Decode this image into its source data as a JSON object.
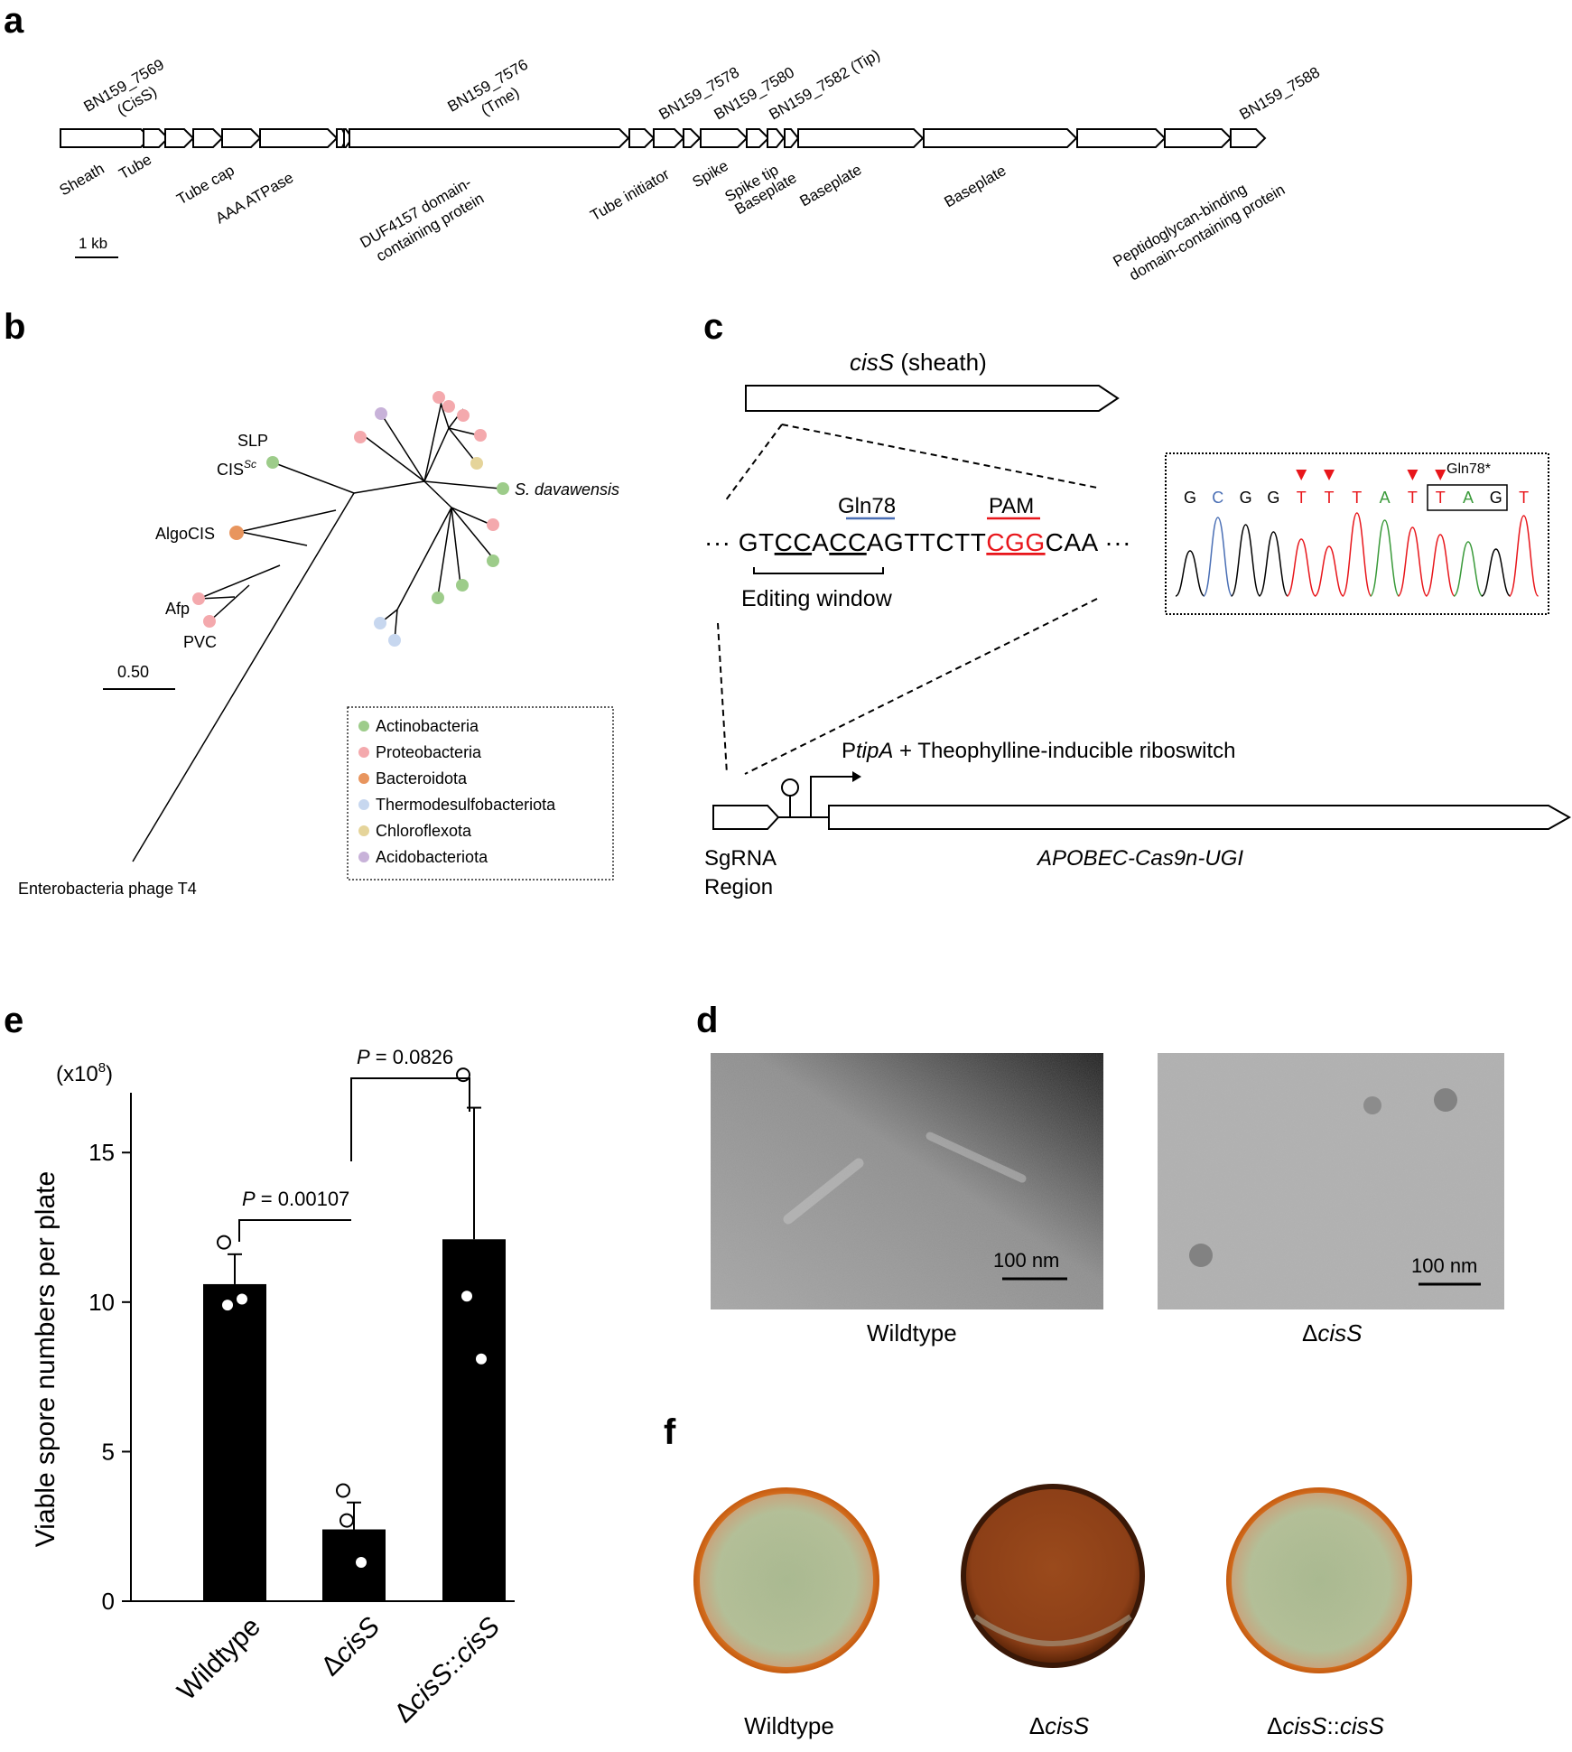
{
  "panels": {
    "a": "a",
    "b": "b",
    "c": "c",
    "d": "d",
    "e": "e",
    "f": "f"
  },
  "panel_a": {
    "top_labels": [
      {
        "text": "BN159_7569",
        "sub": "(CisS)"
      },
      {
        "text": "BN159_7576",
        "sub": "(Tme)"
      },
      {
        "text": "BN159_7578",
        "sub": ""
      },
      {
        "text": "BN159_7580",
        "sub": ""
      },
      {
        "text": "BN159_7582 (Tip)",
        "sub": ""
      },
      {
        "text": "BN159_7588",
        "sub": ""
      }
    ],
    "bottom_labels": [
      {
        "text": "Sheath",
        "sub": ""
      },
      {
        "text": "Tube",
        "sub": ""
      },
      {
        "text": "Tube cap",
        "sub": ""
      },
      {
        "text": "AAA ATPase",
        "sub": ""
      },
      {
        "text": "DUF4157 domain-",
        "sub": "containing protein"
      },
      {
        "text": "Tube initiator",
        "sub": ""
      },
      {
        "text": "Spike",
        "sub": ""
      },
      {
        "text": "Spike tip",
        "sub": ""
      },
      {
        "text": "Baseplate",
        "sub": ""
      },
      {
        "text": "Baseplate",
        "sub": ""
      },
      {
        "text": "Baseplate",
        "sub": ""
      },
      {
        "text": "Peptidoglycan-binding",
        "sub": "domain-containing protein"
      }
    ],
    "scale_label": "1 kb"
  },
  "panel_b": {
    "labels": {
      "slp": "SLP",
      "cis_sc": "CIS",
      "cis_sc_sup": "Sc",
      "algocis": "AlgoCIS",
      "afp": "Afp",
      "pvc": "PVC",
      "s_davawensis": "S. davawensis",
      "t4": "Enterobacteria phage T4"
    },
    "scale_label": "0.50",
    "legend": [
      {
        "label": "Actinobacteria",
        "color": "#9dcc8a"
      },
      {
        "label": "Proteobacteria",
        "color": "#f4a9ad"
      },
      {
        "label": "Bacteroidota",
        "color": "#e8955e"
      },
      {
        "label": "Thermodesulfobacteriota",
        "color": "#c7d7ef"
      },
      {
        "label": "Chloroflexota",
        "color": "#e5d49a"
      },
      {
        "label": "Acidobacteriota",
        "color": "#c8b2d9"
      }
    ]
  },
  "panel_c": {
    "gene_title_italic": "cisS",
    "gene_title_rest": " (sheath)",
    "gln78": "Gln78",
    "pam": "PAM",
    "seq_prefix": "··· GT",
    "seq_cc1": "CC",
    "seq_a": "A",
    "seq_cc2": "CC",
    "seq_mid": "AGTTCTT",
    "seq_pam": "CGG",
    "seq_suffix": "CAA ···",
    "editing_window": "Editing window",
    "promoter_p": "P",
    "promoter_italic": "tipA",
    "promoter_rest": " + Theophylline-inducible riboswitch",
    "sgrna_line1": "SgRNA",
    "sgrna_line2": "Region",
    "cassette": "APOBEC-Cas9n-UGI",
    "chrom_bases": [
      "G",
      "C",
      "G",
      "G",
      "T",
      "T",
      "T",
      "A",
      "T",
      "T",
      "A",
      "G",
      "T"
    ],
    "chrom_label": "Gln78*",
    "colors": {
      "blue": "#4a6fb5",
      "red": "#e8161b",
      "green": "#3a9a3a",
      "black": "#000000"
    }
  },
  "panel_d": {
    "scale": "100 nm",
    "captions": [
      "Wildtype",
      "Δ",
      "cisS"
    ]
  },
  "panel_f": {
    "captions": [
      "Wildtype",
      "ΔcisS",
      "ΔcisS::cisS"
    ]
  },
  "chart_data": {
    "type": "bar",
    "categories": [
      "Wildtype",
      "ΔcisS",
      "ΔcisS::cisS"
    ],
    "values": [
      10.6,
      2.4,
      12.1
    ],
    "errors": [
      1.0,
      0.9,
      4.4
    ],
    "points": [
      [
        12.0,
        9.9,
        10.1
      ],
      [
        3.7,
        2.7,
        1.3
      ],
      [
        17.6,
        10.2,
        8.1
      ]
    ],
    "ylabel": "Viable spore numbers per plate",
    "ylabel_unit": "(x10",
    "ylabel_unit_sup": "8",
    "ylim": [
      0,
      17
    ],
    "yticks": [
      0,
      5,
      10,
      15
    ],
    "annotations": [
      {
        "p_label": "P",
        "p_value": " = 0.00107",
        "between": [
          0,
          1
        ]
      },
      {
        "p_label": "P",
        "p_value": " = 0.0826",
        "between": [
          1,
          2
        ]
      }
    ],
    "bar_color": "#000000"
  }
}
